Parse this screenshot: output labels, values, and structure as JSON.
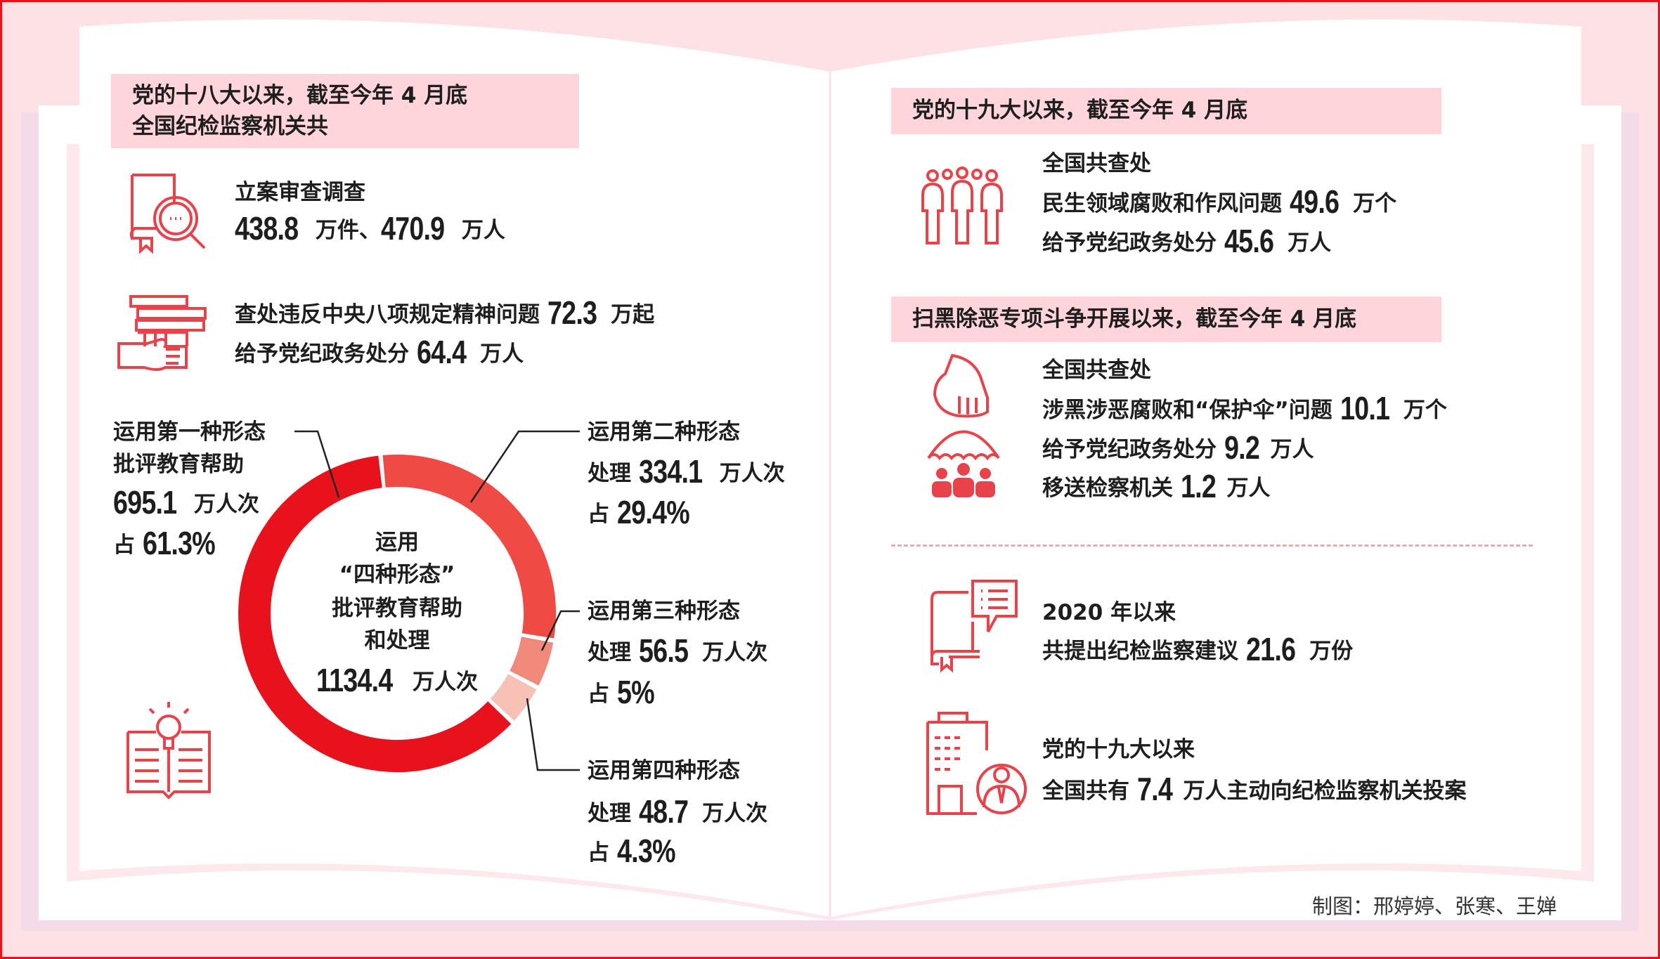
{
  "colors": {
    "accent": "#e8121c",
    "seg1": "#e8121c",
    "seg2": "#f04a45",
    "seg3": "#f0897a",
    "seg4": "#f7c2b5",
    "header_bg": "#fdd5da",
    "icon": "#e8434a"
  },
  "left": {
    "header": [
      "党的十八大以来，截至今年 4 月底",
      "全国纪检监察机关共"
    ],
    "item1": {
      "label": "立案审查调查",
      "v1": "438.8",
      "u1": "万件、",
      "v2": "470.9",
      "u2": "万人",
      "icon": "book-magnifier-icon"
    },
    "item2": {
      "l1_pre": "查处违反中央八项规定精神问题",
      "v1": "72.3",
      "u1": "万起",
      "l2_pre": "给予党纪政务处分",
      "v2": "64.4",
      "u2": "万人",
      "icon": "hand-books-icon"
    },
    "center": {
      "l1": "运用",
      "l2": "“四种形态”",
      "l3": "批评教育帮助",
      "l4": "和处理",
      "total": "1134.4",
      "total_unit": "万人次"
    },
    "forms": [
      {
        "title": "运用第一种形态",
        "l2": "批评教育帮助",
        "value": "695.1",
        "unit": "万人次",
        "pct_pre": "占",
        "pct": "61.3%",
        "share": 61.3
      },
      {
        "title": "运用第二种形态",
        "pre": "处理",
        "value": "334.1",
        "unit": "万人次",
        "pct_pre": "占",
        "pct": "29.4%",
        "share": 29.4
      },
      {
        "title": "运用第三种形态",
        "pre": "处理",
        "value": "56.5",
        "unit": "万人次",
        "pct_pre": "占",
        "pct": "5%",
        "share": 5
      },
      {
        "title": "运用第四种形态",
        "pre": "处理",
        "value": "48.7",
        "unit": "万人次",
        "pct_pre": "占",
        "pct": "4.3%",
        "share": 4.3
      }
    ]
  },
  "right": {
    "header1": "党的十九大以来，截至今年 4 月底",
    "block1": {
      "l1": "全国共查处",
      "l2_pre": "民生领域腐败和作风问题",
      "v1": "49.6",
      "u1": "万个",
      "l3_pre": "给予党纪政务处分",
      "v2": "45.6",
      "u2": "万人"
    },
    "header2": "扫黑除恶专项斗争开展以来，截至今年 4 月底",
    "block2": {
      "l1": "全国共查处",
      "l2_pre": "涉黑涉恶腐败和“保护伞”问题",
      "v1": "10.1",
      "u1": "万个",
      "l3_pre": "给予党纪政务处分",
      "v2": "9.2",
      "u2": "万人",
      "l4_pre": "移送检察机关",
      "v3": "1.2",
      "u3": "万人"
    },
    "block3": {
      "l1": "2020 年以来",
      "l2_pre": "共提出纪检监察建议",
      "v1": "21.6",
      "u1": "万份"
    },
    "block4": {
      "l1": "党的十九大以来",
      "l2_pre": "全国共有",
      "v1": "7.4",
      "u1": "万人主动向纪检监察机关投案"
    }
  },
  "credit": "制图：邢婷婷、张寒、王婵"
}
